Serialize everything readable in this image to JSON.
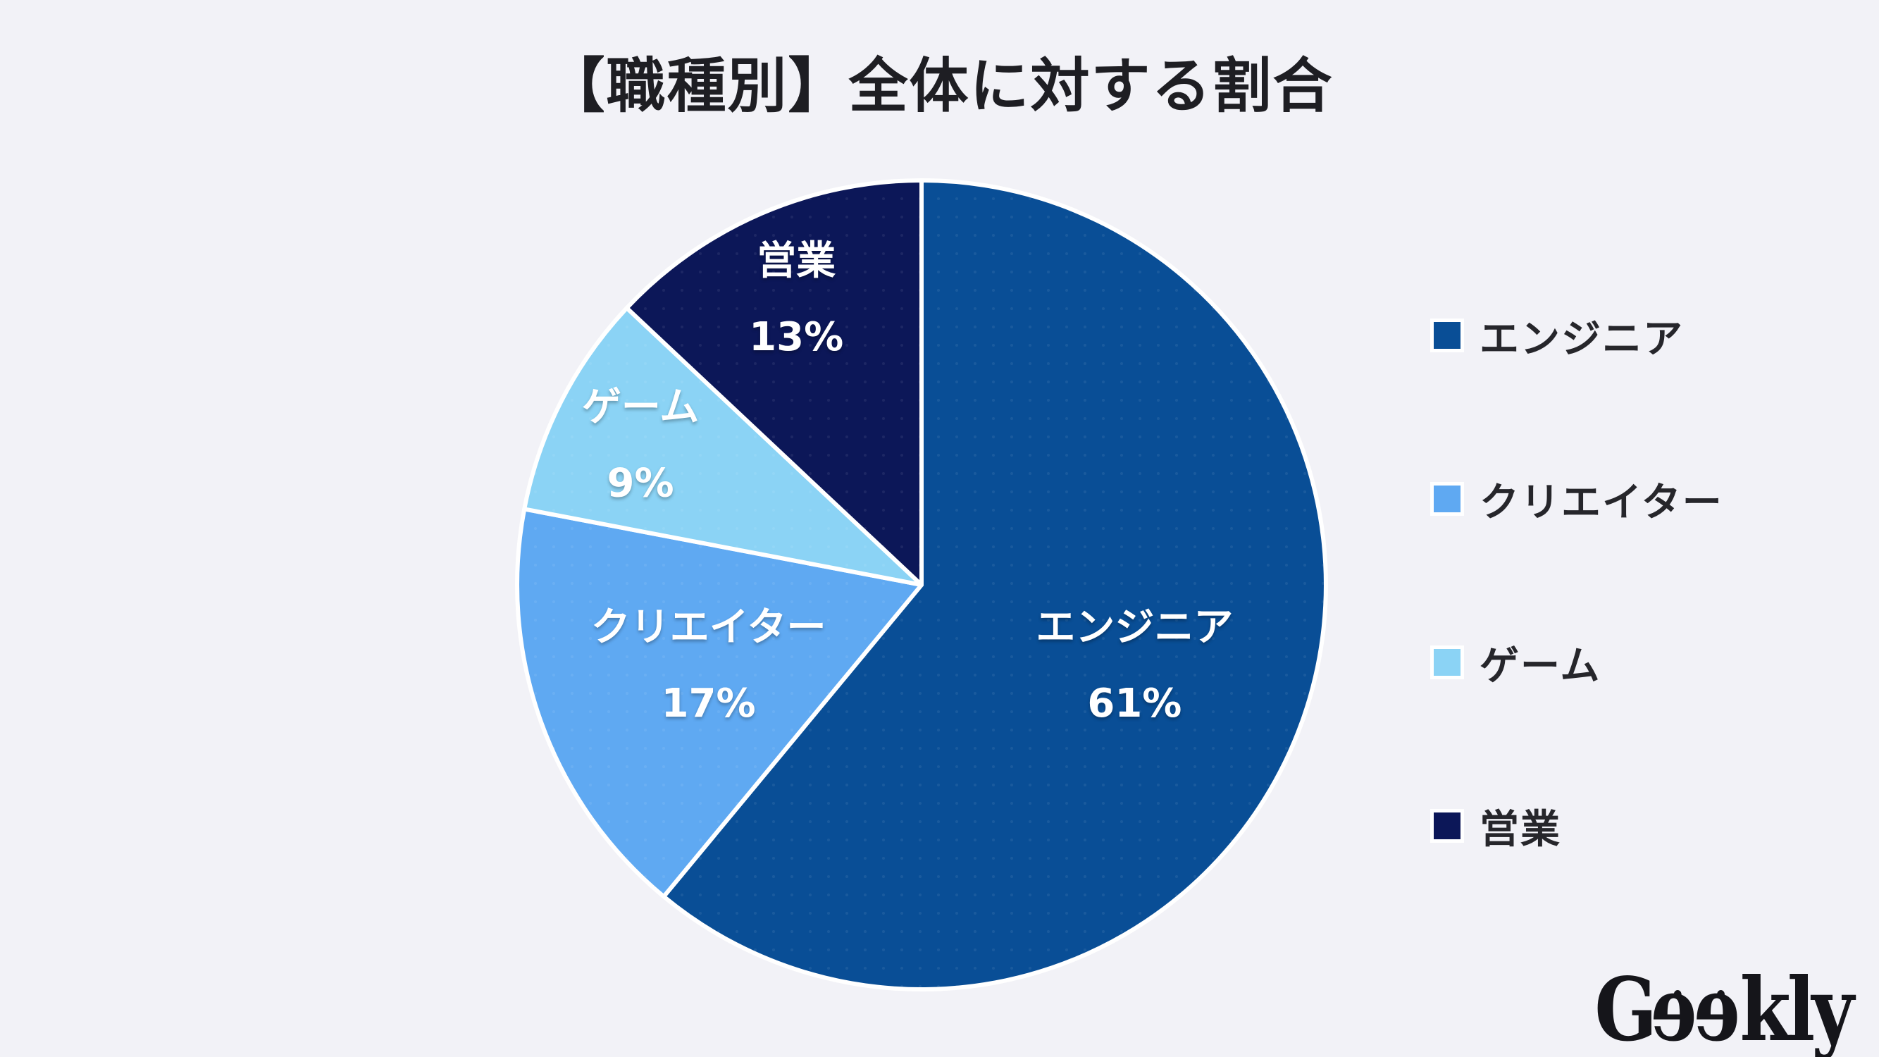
{
  "title": "【職種別】全体に対する割合",
  "colors": {
    "background": "#F2F2F7",
    "title_text": "#1E1E23",
    "legend_text": "#26262B",
    "slice_label_text": "#FFFFFF",
    "slice_border": "#FFFFFF",
    "logo_text": "#15151A"
  },
  "chart_data": {
    "type": "pie",
    "title": "【職種別】全体に対する割合",
    "categories": [
      "エンジニア",
      "クリエイター",
      "ゲーム",
      "営業"
    ],
    "values": [
      61,
      17,
      9,
      13
    ],
    "unit": "%",
    "colors": [
      "#094E96",
      "#5FA9F2",
      "#8BD3F5",
      "#0C1758"
    ],
    "start_angle_deg": 0,
    "direction": "clockwise",
    "legend_position": "right",
    "slice_label_format": "name + percent",
    "grid": false
  },
  "legend": {
    "items": [
      {
        "label": "エンジニア"
      },
      {
        "label": "クリエイター"
      },
      {
        "label": "ゲーム"
      },
      {
        "label": "営業"
      }
    ]
  },
  "logo": {
    "text": "Geekly",
    "part_g": "G",
    "part_e": "e",
    "part_rest": "kly"
  }
}
